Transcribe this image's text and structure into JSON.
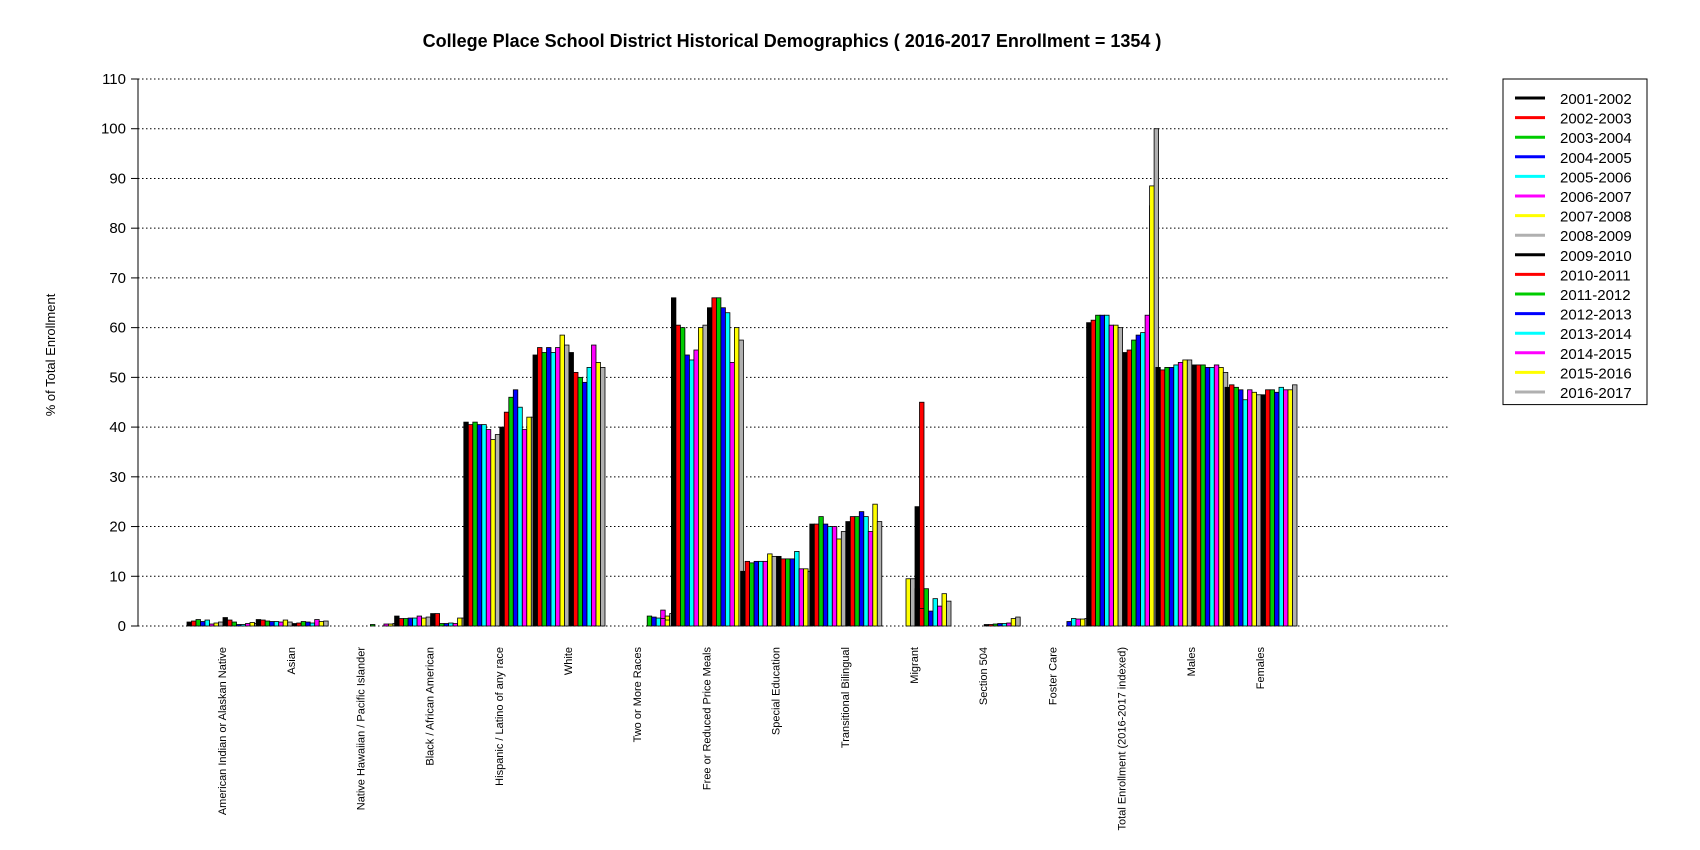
{
  "chart_data": {
    "type": "bar",
    "title": "College Place School District Historical Demographics  ( 2016-2017 Enrollment =  1354 )",
    "xlabel": "",
    "ylabel": "% of Total Enrollment",
    "ylim": [
      0,
      110
    ],
    "yticks": [
      0,
      10,
      20,
      30,
      40,
      50,
      60,
      70,
      80,
      90,
      100,
      110
    ],
    "grid": "horizontal dotted",
    "legend_position": "top-right",
    "categories": [
      "American Indian or Alaskan Native",
      "Asian",
      "Native Hawaiian / Pacific Islander",
      "Black / African American",
      "Hispanic / Latino of any race",
      "White",
      "Two or More Races",
      "Free or Reduced Price Meals",
      "Special Education",
      "Transitional Bilingual",
      "Migrant",
      "Section 504",
      "Foster Care",
      "Total Enrollment (2016-2017 indexed)",
      "Males",
      "Females"
    ],
    "series": [
      {
        "name": "2001-2002",
        "color": "#000000",
        "values": [
          0.8,
          1.3,
          0,
          2.0,
          41.0,
          54.5,
          0,
          66.0,
          11.0,
          20.5,
          0,
          0,
          0,
          61.0,
          52.0,
          48.0
        ]
      },
      {
        "name": "2002-2003",
        "color": "#ff0000",
        "values": [
          1.0,
          1.2,
          0,
          1.5,
          40.5,
          56.0,
          0,
          60.5,
          13.0,
          20.5,
          0,
          0,
          0,
          61.5,
          51.5,
          48.5
        ]
      },
      {
        "name": "2003-2004",
        "color": "#00cc00",
        "values": [
          1.3,
          1.0,
          0,
          1.5,
          41.0,
          55.0,
          0,
          60.0,
          12.7,
          22.0,
          0,
          0,
          0,
          62.5,
          52.0,
          48.0
        ]
      },
      {
        "name": "2004-2005",
        "color": "#0000ff",
        "values": [
          0.9,
          0.9,
          0,
          1.6,
          40.5,
          56.0,
          0,
          54.5,
          13.0,
          20.5,
          0,
          0,
          0,
          62.5,
          52.0,
          47.5
        ]
      },
      {
        "name": "2005-2006",
        "color": "#00ffff",
        "values": [
          1.2,
          0.9,
          0,
          1.6,
          40.5,
          55.0,
          0,
          53.5,
          13.0,
          20.0,
          0,
          0,
          0,
          62.5,
          52.5,
          45.5
        ]
      },
      {
        "name": "2006-2007",
        "color": "#ff00ff",
        "values": [
          0.4,
          0.8,
          0,
          2.0,
          39.5,
          56.0,
          0,
          55.5,
          13.0,
          20.0,
          0,
          0,
          0,
          60.5,
          53.0,
          47.5
        ]
      },
      {
        "name": "2007-2008",
        "color": "#ffff00",
        "values": [
          0.6,
          1.2,
          0,
          1.6,
          37.5,
          58.5,
          0,
          60.0,
          14.5,
          17.5,
          0,
          0,
          0,
          60.5,
          53.5,
          47.0
        ]
      },
      {
        "name": "2008-2009",
        "color": "#b0b0b0",
        "values": [
          0.8,
          0.8,
          0,
          1.8,
          38.5,
          56.5,
          0,
          60.5,
          14.0,
          19.0,
          0,
          0,
          0,
          60.0,
          53.5,
          46.5
        ]
      },
      {
        "name": "2009-2010",
        "color": "#000000",
        "values": [
          1.7,
          0.5,
          0,
          2.5,
          40.0,
          55.0,
          0,
          64.0,
          14.0,
          21.0,
          24.0,
          0,
          0,
          55.0,
          52.5,
          46.5
        ]
      },
      {
        "name": "2010-2011",
        "color": "#ff0000",
        "values": [
          1.2,
          0.6,
          0,
          2.5,
          43.0,
          51.0,
          0,
          66.0,
          13.5,
          22.0,
          45.0,
          0,
          0,
          55.5,
          52.5,
          47.5
        ]
      },
      {
        "name": "2011-2012",
        "color": "#00cc00",
        "values": [
          0.8,
          0.9,
          0.3,
          0.5,
          46.0,
          50.0,
          0,
          66.0,
          13.5,
          22.0,
          0,
          0,
          0,
          57.5,
          52.5,
          47.5
        ]
      },
      {
        "name": "2012-2013",
        "color": "#0000ff",
        "values": [
          0.3,
          0.8,
          0,
          0.5,
          47.5,
          49.0,
          0,
          64.0,
          13.5,
          23.0,
          0,
          0,
          0,
          58.5,
          52.0,
          47.0
        ]
      },
      {
        "name": "2013-2014",
        "color": "#00ffff",
        "values": [
          0.3,
          0.6,
          0,
          0.6,
          44.0,
          52.0,
          0,
          63.0,
          15.0,
          22.0,
          0,
          0,
          0,
          59.0,
          52.0,
          48.0
        ]
      },
      {
        "name": "2014-2015",
        "color": "#ff00ff",
        "values": [
          0.5,
          1.3,
          0.4,
          0.5,
          39.5,
          56.5,
          3.2,
          53.0,
          11.5,
          19.0,
          0,
          0,
          0,
          62.5,
          52.5,
          47.5
        ]
      },
      {
        "name": "2015-2016",
        "color": "#ffff00",
        "values": [
          0.7,
          0.9,
          0.4,
          1.6,
          42.0,
          53.0,
          2.0,
          60.0,
          11.5,
          24.5,
          0,
          0,
          0,
          84.5,
          52.0,
          47.5
        ]
      },
      {
        "name": "2016-2017",
        "color": "#b0b0b0",
        "values": [
          0.5,
          1.0,
          0.5,
          1.6,
          42.0,
          52.0,
          1.8,
          57.5,
          11.0,
          21.0,
          0,
          0,
          0,
          100.0,
          51.0,
          48.5
        ]
      }
    ],
    "extra_bars": [
      {
        "category": "Two or More Races",
        "values": [
          2.0,
          1.8,
          1.6,
          1.5,
          1.2,
          2.5
        ]
      },
      {
        "category": "Migrant",
        "values": [
          9.5,
          9.5,
          7.5,
          3.5,
          7.5,
          3.0,
          5.5,
          4.0,
          6.5,
          5.0
        ]
      },
      {
        "category": "Section 504",
        "values": [
          0.3,
          0.3,
          0.4,
          0.5,
          0.5,
          0.6,
          1.5,
          1.8
        ]
      },
      {
        "category": "Foster Care",
        "values": [
          0.9,
          1.5,
          1.4,
          1.4,
          1.5
        ]
      },
      {
        "category": "Total Enrollment (2016-2017 indexed)",
        "values": [
          88.5
        ]
      }
    ]
  }
}
